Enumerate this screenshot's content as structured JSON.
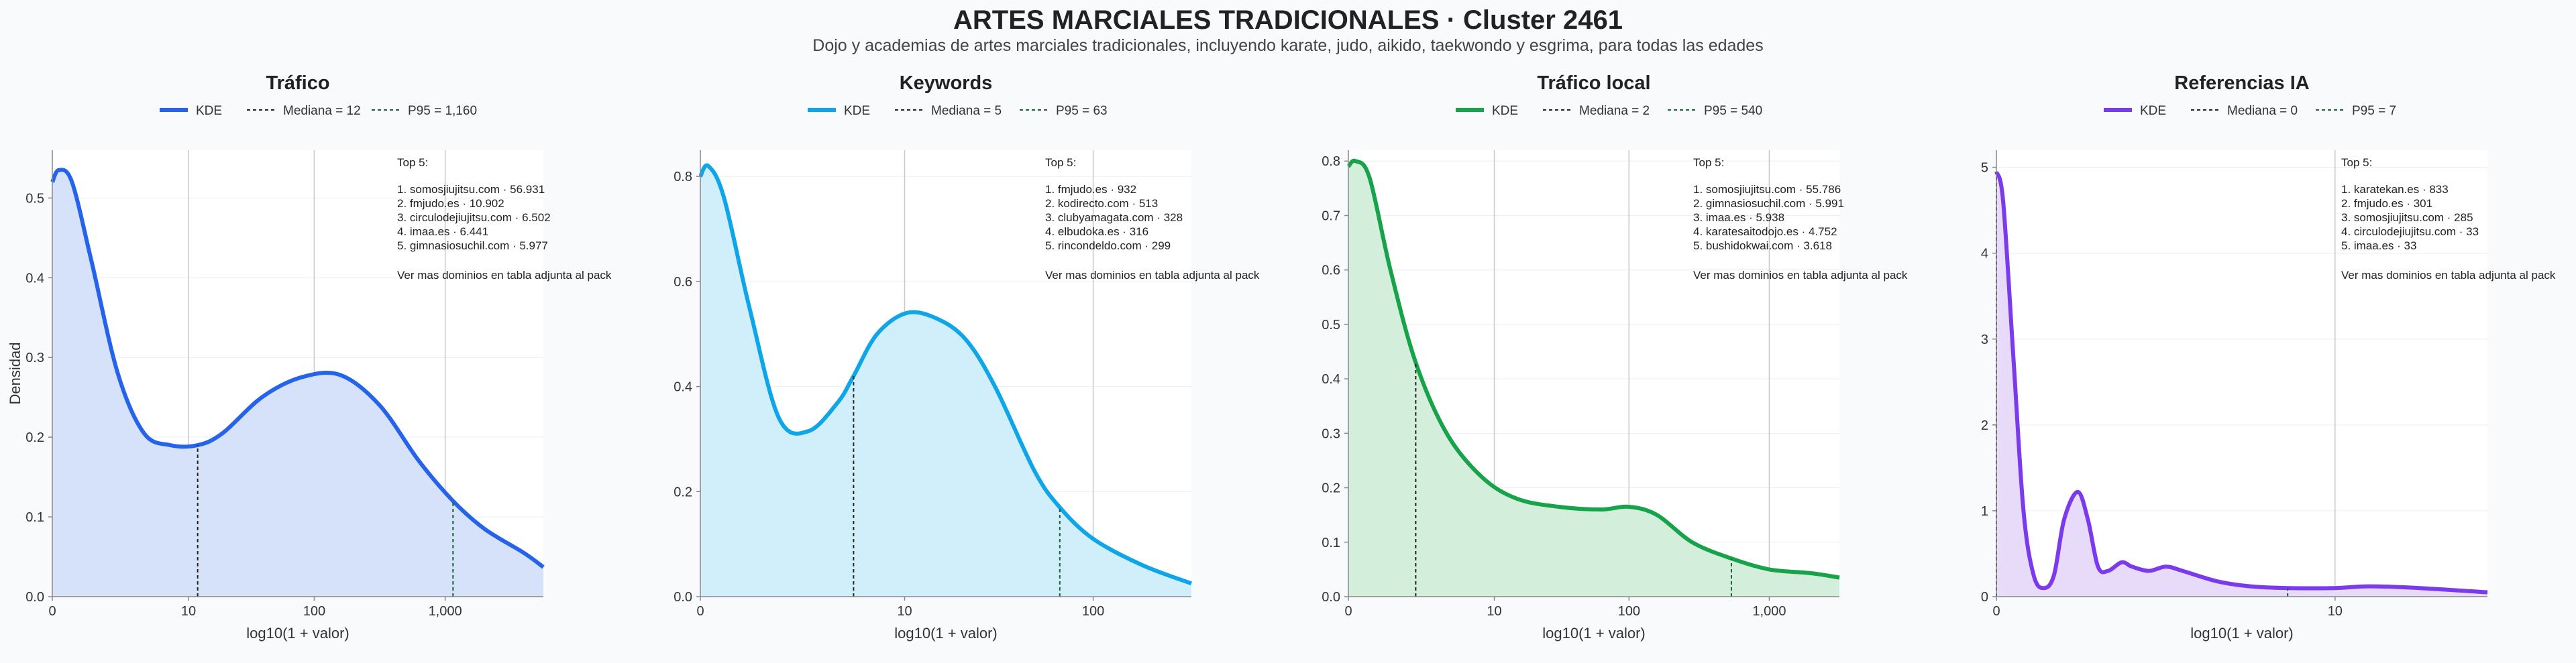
{
  "header": {
    "title": "ARTES MARCIALES TRADICIONALES · Cluster 2461",
    "subtitle": "Dojo y academias de artes marciales tradicionales, incluyendo karate, judo, aikido, taekwondo y esgrima, para todas las edades"
  },
  "chart_data": [
    {
      "type": "area",
      "title": "Tráfico",
      "color": "#2563eb",
      "fill": "#d6e1fa",
      "xlabel": "log10(1 + valor)",
      "ylabel": "Densidad",
      "xlim": [
        0,
        3.75
      ],
      "ylim": [
        0,
        0.56
      ],
      "yticks": [
        0.0,
        0.1,
        0.2,
        0.3,
        0.4,
        0.5
      ],
      "ytick_labels": [
        "0.0",
        "0.1",
        "0.2",
        "0.3",
        "0.4",
        "0.5"
      ],
      "xticks": [
        0,
        1.04,
        2.0,
        3.0
      ],
      "xtick_labels": [
        "0",
        "10",
        "100",
        "1,000"
      ],
      "legend": {
        "kde": "KDE",
        "median": "Mediana = 12",
        "p95": "P95 = 1,160"
      },
      "median_x": 1.11,
      "p95_x": 3.06,
      "x": [
        0,
        0.05,
        0.15,
        0.3,
        0.5,
        0.7,
        0.9,
        1.11,
        1.3,
        1.6,
        1.9,
        2.2,
        2.5,
        2.8,
        3.06,
        3.3,
        3.6,
        3.75
      ],
      "y": [
        0.52,
        0.535,
        0.52,
        0.42,
        0.28,
        0.205,
        0.19,
        0.19,
        0.205,
        0.25,
        0.275,
        0.278,
        0.24,
        0.17,
        0.12,
        0.085,
        0.055,
        0.037
      ],
      "annotation": {
        "heading": "Top 5:",
        "items": [
          "1. somosjiujitsu.com · 56.931",
          "2. fmjudo.es · 10.902",
          "3. circulodejiujitsu.com · 6.502",
          "4. imaa.es · 6.441",
          "5. gimnasiosuchil.com · 5.977"
        ],
        "note": "Ver mas dominios en tabla adjunta al pack"
      }
    },
    {
      "type": "area",
      "title": "Keywords",
      "color": "#0ea5e9",
      "fill": "#d1effb",
      "xlabel": "log10(1 + valor)",
      "ylabel": "",
      "xlim": [
        0,
        2.5
      ],
      "ylim": [
        0,
        0.85
      ],
      "yticks": [
        0.0,
        0.2,
        0.4,
        0.6,
        0.8
      ],
      "ytick_labels": [
        "0.0",
        "0.2",
        "0.4",
        "0.6",
        "0.8"
      ],
      "xticks": [
        0,
        1.04,
        2.0
      ],
      "xtick_labels": [
        "0",
        "10",
        "100"
      ],
      "legend": {
        "kde": "KDE",
        "median": "Mediana = 5",
        "p95": "P95 = 63"
      },
      "median_x": 0.78,
      "p95_x": 1.83,
      "x": [
        0,
        0.04,
        0.12,
        0.25,
        0.4,
        0.55,
        0.7,
        0.78,
        0.9,
        1.05,
        1.2,
        1.35,
        1.5,
        1.7,
        1.83,
        2.0,
        2.25,
        2.5
      ],
      "y": [
        0.8,
        0.82,
        0.76,
        0.55,
        0.34,
        0.315,
        0.37,
        0.42,
        0.5,
        0.54,
        0.53,
        0.49,
        0.4,
        0.24,
        0.17,
        0.11,
        0.06,
        0.025
      ],
      "annotation": {
        "heading": "Top 5:",
        "items": [
          "1. fmjudo.es · 932",
          "2. kodirecto.com · 513",
          "3. clubyamagata.com · 328",
          "4. elbudoka.es · 316",
          "5. rincondeldo.com · 299"
        ],
        "note": "Ver mas dominios en tabla adjunta al pack"
      }
    },
    {
      "type": "area",
      "title": "Tráfico local",
      "color": "#16a34a",
      "fill": "#d3eedb",
      "xlabel": "log10(1 + valor)",
      "ylabel": "",
      "xlim": [
        0,
        3.5
      ],
      "ylim": [
        0,
        0.82
      ],
      "yticks": [
        0.0,
        0.1,
        0.2,
        0.3,
        0.4,
        0.5,
        0.6,
        0.7,
        0.8
      ],
      "ytick_labels": [
        "0.0",
        "0.1",
        "0.2",
        "0.3",
        "0.4",
        "0.5",
        "0.6",
        "0.7",
        "0.8"
      ],
      "xticks": [
        0,
        1.04,
        2.0,
        3.0
      ],
      "xtick_labels": [
        "0",
        "10",
        "100",
        "1,000"
      ],
      "legend": {
        "kde": "KDE",
        "median": "Mediana = 2",
        "p95": "P95 = 540"
      },
      "median_x": 0.48,
      "p95_x": 2.73,
      "x": [
        0,
        0.05,
        0.15,
        0.3,
        0.48,
        0.7,
        0.95,
        1.2,
        1.5,
        1.8,
        2.0,
        2.2,
        2.45,
        2.73,
        3.0,
        3.3,
        3.5
      ],
      "y": [
        0.79,
        0.8,
        0.77,
        0.6,
        0.43,
        0.3,
        0.22,
        0.18,
        0.165,
        0.16,
        0.165,
        0.15,
        0.1,
        0.07,
        0.05,
        0.043,
        0.035
      ],
      "annotation": {
        "heading": "Top 5:",
        "items": [
          "1. somosjiujitsu.com · 55.786",
          "2. gimnasiosuchil.com · 5.991",
          "3. imaa.es · 5.938",
          "4. karatesaitodojo.es · 4.752",
          "5. bushidokwai.com · 3.618"
        ],
        "note": "Ver mas dominios en tabla adjunta al pack"
      }
    },
    {
      "type": "area",
      "title": "Referencias IA",
      "color": "#7c3aed",
      "fill": "#e7dbf9",
      "xlabel": "log10(1 + valor)",
      "ylabel": "",
      "xlim": [
        0,
        1.45
      ],
      "ylim": [
        0,
        5.2
      ],
      "yticks": [
        0,
        1,
        2,
        3,
        4,
        5
      ],
      "ytick_labels": [
        "0",
        "1",
        "2",
        "3",
        "4",
        "5"
      ],
      "xticks": [
        0,
        1.0
      ],
      "xtick_labels": [
        "0",
        "10"
      ],
      "legend": {
        "kde": "KDE",
        "median": "Mediana = 0",
        "p95": "P95 = 7"
      },
      "median_x": 0.0,
      "p95_x": 0.86,
      "x": [
        0,
        0.02,
        0.05,
        0.08,
        0.11,
        0.14,
        0.17,
        0.2,
        0.24,
        0.27,
        0.3,
        0.33,
        0.37,
        0.4,
        0.45,
        0.5,
        0.55,
        0.65,
        0.75,
        0.86,
        1.0,
        1.1,
        1.25,
        1.45
      ],
      "y": [
        4.95,
        4.6,
        2.8,
        1.0,
        0.25,
        0.1,
        0.25,
        0.9,
        1.22,
        0.9,
        0.35,
        0.3,
        0.4,
        0.35,
        0.3,
        0.35,
        0.3,
        0.18,
        0.12,
        0.1,
        0.1,
        0.12,
        0.1,
        0.05
      ],
      "annotation": {
        "heading": "Top 5:",
        "items": [
          "1. karatekan.es · 833",
          "2. fmjudo.es · 301",
          "3. somosjiujitsu.com · 285",
          "4. circulodejiujitsu.com · 33",
          "5. imaa.es · 33"
        ],
        "note": "Ver mas dominios en tabla adjunta al pack"
      }
    }
  ]
}
